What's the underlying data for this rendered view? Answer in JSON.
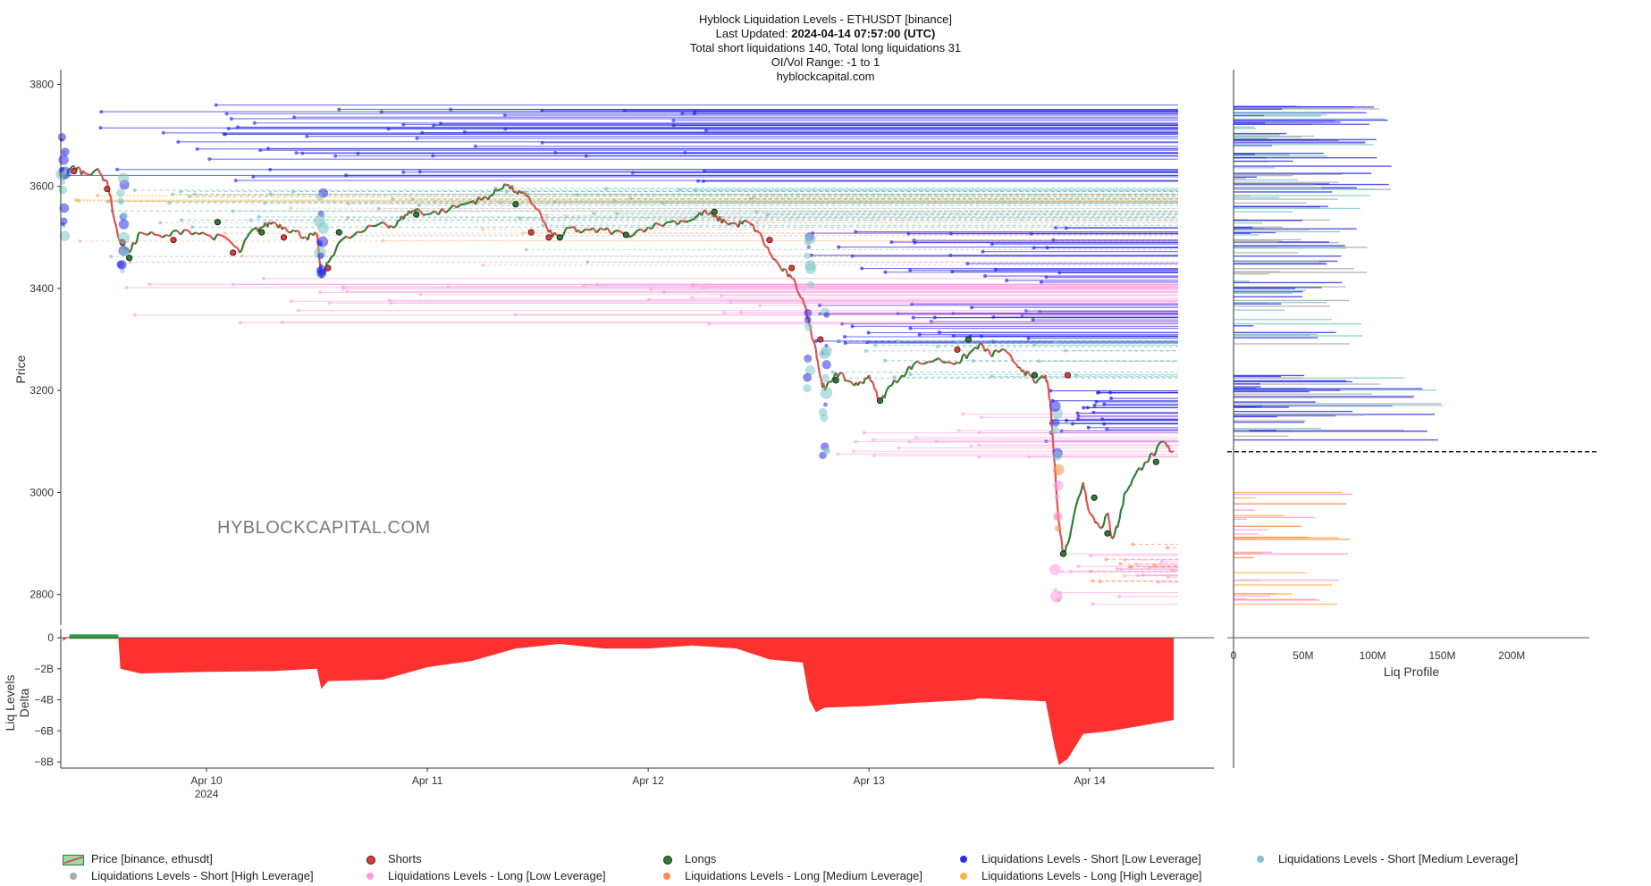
{
  "header": {
    "title": "Hyblock Liquidation Levels - ETHUSDT [binance]",
    "updated_label": "Last Updated:",
    "updated_value": "2024-04-14 07:57:00 (UTC)",
    "totals": "Total short liquidations 140, Total long liquidations 31",
    "range": "OI/Vol Range: -1 to 1",
    "site": "hyblockcapital.com"
  },
  "watermark": "HYBLOCKCAPITAL.COM",
  "colors": {
    "short_low": "#2b2be8",
    "short_medium": "#7fc6c6",
    "short_high": "#aaaaaa",
    "long_low": "#ff99e0",
    "long_medium": "#ff8a4a",
    "long_high": "#ffb347",
    "price_up": "#2e7d32",
    "price_down": "#e05050",
    "shorts_marker": "#e53935",
    "longs_marker": "#2e7d32",
    "delta_neg": "#ff3030",
    "delta_pos": "#2e9e3a"
  },
  "legend": [
    {
      "label": "Price [binance, ethusdt]",
      "kind": "price"
    },
    {
      "label": "Shorts",
      "color": "#e53935"
    },
    {
      "label": "Longs",
      "color": "#2e7d32"
    },
    {
      "label": "Liquidations Levels - Short [Low Leverage]",
      "color": "#2b2be8"
    },
    {
      "label": "Liquidations Levels - Short [Medium Leverage]",
      "color": "#7fc6c6"
    },
    {
      "label": "Liquidations Levels - Short [High Leverage]",
      "color": "#aaaaaa"
    },
    {
      "label": "Liquidations Levels - Long [Low Leverage]",
      "color": "#ff99e0"
    },
    {
      "label": "Liquidations Levels - Long [Medium Leverage]",
      "color": "#ff8a4a"
    },
    {
      "label": "Liquidations Levels - Long [High Leverage]",
      "color": "#ffb347"
    }
  ],
  "chart_data": [
    {
      "type": "line",
      "panel": "price",
      "ylabel": "Price",
      "ylim": [
        2740,
        3820
      ],
      "yticks": [
        "3800",
        "3600",
        "3400",
        "3200",
        "3000",
        "2800"
      ],
      "xticks": [
        {
          "label": "Apr 10",
          "sub": "2024",
          "day": 10
        },
        {
          "label": "Apr 11",
          "sub": "",
          "day": 11
        },
        {
          "label": "Apr 12",
          "sub": "",
          "day": 12
        },
        {
          "label": "Apr 13",
          "sub": "",
          "day": 13
        },
        {
          "label": "Apr 14",
          "sub": "",
          "day": 14
        }
      ],
      "xlim_days": [
        9.34,
        14.4
      ],
      "current_price": 3080,
      "price_series": [
        [
          9.35,
          3615
        ],
        [
          9.4,
          3640
        ],
        [
          9.45,
          3625
        ],
        [
          9.5,
          3632
        ],
        [
          9.55,
          3610
        ],
        [
          9.6,
          3500
        ],
        [
          9.65,
          3470
        ],
        [
          9.7,
          3510
        ],
        [
          9.8,
          3500
        ],
        [
          9.9,
          3515
        ],
        [
          10.0,
          3505
        ],
        [
          10.1,
          3495
        ],
        [
          10.15,
          3470
        ],
        [
          10.2,
          3510
        ],
        [
          10.25,
          3520
        ],
        [
          10.3,
          3530
        ],
        [
          10.35,
          3520
        ],
        [
          10.4,
          3512
        ],
        [
          10.45,
          3500
        ],
        [
          10.5,
          3505
        ],
        [
          10.52,
          3420
        ],
        [
          10.55,
          3450
        ],
        [
          10.6,
          3490
        ],
        [
          10.7,
          3510
        ],
        [
          10.8,
          3530
        ],
        [
          10.85,
          3520
        ],
        [
          10.9,
          3545
        ],
        [
          10.95,
          3555
        ],
        [
          11.0,
          3545
        ],
        [
          11.1,
          3555
        ],
        [
          11.2,
          3570
        ],
        [
          11.25,
          3575
        ],
        [
          11.3,
          3585
        ],
        [
          11.35,
          3605
        ],
        [
          11.4,
          3590
        ],
        [
          11.45,
          3580
        ],
        [
          11.5,
          3555
        ],
        [
          11.55,
          3510
        ],
        [
          11.6,
          3500
        ],
        [
          11.65,
          3520
        ],
        [
          11.7,
          3510
        ],
        [
          11.8,
          3515
        ],
        [
          11.9,
          3505
        ],
        [
          12.0,
          3520
        ],
        [
          12.1,
          3530
        ],
        [
          12.2,
          3535
        ],
        [
          12.25,
          3550
        ],
        [
          12.3,
          3540
        ],
        [
          12.35,
          3530
        ],
        [
          12.4,
          3525
        ],
        [
          12.45,
          3530
        ],
        [
          12.5,
          3510
        ],
        [
          12.55,
          3470
        ],
        [
          12.6,
          3440
        ],
        [
          12.65,
          3420
        ],
        [
          12.7,
          3380
        ],
        [
          12.73,
          3330
        ],
        [
          12.76,
          3280
        ],
        [
          12.78,
          3225
        ],
        [
          12.8,
          3200
        ],
        [
          12.85,
          3235
        ],
        [
          12.9,
          3220
        ],
        [
          12.95,
          3210
        ],
        [
          13.0,
          3230
        ],
        [
          13.05,
          3175
        ],
        [
          13.08,
          3200
        ],
        [
          13.15,
          3230
        ],
        [
          13.2,
          3250
        ],
        [
          13.3,
          3260
        ],
        [
          13.4,
          3255
        ],
        [
          13.45,
          3270
        ],
        [
          13.5,
          3290
        ],
        [
          13.55,
          3270
        ],
        [
          13.6,
          3280
        ],
        [
          13.65,
          3260
        ],
        [
          13.7,
          3240
        ],
        [
          13.75,
          3215
        ],
        [
          13.8,
          3230
        ],
        [
          13.82,
          3180
        ],
        [
          13.84,
          3060
        ],
        [
          13.86,
          2940
        ],
        [
          13.88,
          2880
        ],
        [
          13.9,
          2900
        ],
        [
          13.93,
          2960
        ],
        [
          13.97,
          3020
        ],
        [
          14.0,
          2960
        ],
        [
          14.05,
          2930
        ],
        [
          14.08,
          2960
        ],
        [
          14.1,
          2910
        ],
        [
          14.13,
          2940
        ],
        [
          14.16,
          3000
        ],
        [
          14.2,
          3030
        ],
        [
          14.25,
          3060
        ],
        [
          14.3,
          3080
        ],
        [
          14.33,
          3100
        ],
        [
          14.36,
          3085
        ],
        [
          14.38,
          3080
        ]
      ],
      "shorts_markers": [
        [
          9.4,
          3630
        ],
        [
          9.55,
          3595
        ],
        [
          9.62,
          3490
        ],
        [
          9.85,
          3495
        ],
        [
          10.12,
          3470
        ],
        [
          10.35,
          3500
        ],
        [
          10.55,
          3440
        ],
        [
          11.47,
          3510
        ],
        [
          11.55,
          3500
        ],
        [
          12.55,
          3495
        ],
        [
          12.65,
          3440
        ],
        [
          12.78,
          3300
        ],
        [
          13.4,
          3280
        ],
        [
          13.9,
          3230
        ]
      ],
      "longs_markers": [
        [
          9.65,
          3460
        ],
        [
          10.05,
          3530
        ],
        [
          10.25,
          3510
        ],
        [
          10.52,
          3430
        ],
        [
          10.6,
          3510
        ],
        [
          10.95,
          3545
        ],
        [
          11.4,
          3565
        ],
        [
          11.6,
          3500
        ],
        [
          11.9,
          3505
        ],
        [
          12.3,
          3550
        ],
        [
          12.85,
          3220
        ],
        [
          13.05,
          3180
        ],
        [
          13.45,
          3300
        ],
        [
          13.75,
          3230
        ],
        [
          13.88,
          2880
        ],
        [
          14.02,
          2990
        ],
        [
          14.08,
          2920
        ],
        [
          14.3,
          3060
        ]
      ]
    },
    {
      "type": "area",
      "panel": "delta",
      "ylabel": "Liq Levels Delta",
      "ylim": [
        -8400,
        0
      ],
      "unit": "M",
      "yticks": [
        "0",
        "−2B",
        "−4B",
        "−6B",
        "−8B"
      ],
      "yvals": [
        0,
        -2000,
        -4000,
        -6000,
        -8000
      ],
      "series": [
        [
          9.35,
          -200
        ],
        [
          9.38,
          100
        ],
        [
          9.6,
          100
        ],
        [
          9.61,
          -2000
        ],
        [
          9.7,
          -2300
        ],
        [
          10.0,
          -2200
        ],
        [
          10.3,
          -2150
        ],
        [
          10.5,
          -2000
        ],
        [
          10.52,
          -3300
        ],
        [
          10.55,
          -2800
        ],
        [
          10.8,
          -2700
        ],
        [
          11.0,
          -1900
        ],
        [
          11.2,
          -1500
        ],
        [
          11.4,
          -700
        ],
        [
          11.6,
          -400
        ],
        [
          11.8,
          -700
        ],
        [
          12.0,
          -700
        ],
        [
          12.2,
          -500
        ],
        [
          12.4,
          -700
        ],
        [
          12.55,
          -1400
        ],
        [
          12.7,
          -1600
        ],
        [
          12.73,
          -4000
        ],
        [
          12.76,
          -4800
        ],
        [
          12.8,
          -4500
        ],
        [
          13.0,
          -4400
        ],
        [
          13.2,
          -4200
        ],
        [
          13.47,
          -4000
        ],
        [
          13.5,
          -3900
        ],
        [
          13.8,
          -4100
        ],
        [
          13.84,
          -7000
        ],
        [
          13.86,
          -8200
        ],
        [
          13.9,
          -7800
        ],
        [
          13.97,
          -6200
        ],
        [
          14.1,
          -6000
        ],
        [
          14.3,
          -5500
        ],
        [
          14.38,
          -5300
        ]
      ]
    },
    {
      "type": "bar",
      "panel": "liq_profile",
      "xlabel": "Liq Profile",
      "xticks": [
        "0",
        "50M",
        "100M",
        "150M",
        "200M"
      ],
      "xvals": [
        0,
        50,
        100,
        150,
        200
      ],
      "xlim": [
        0,
        230
      ],
      "unit": "M"
    }
  ]
}
